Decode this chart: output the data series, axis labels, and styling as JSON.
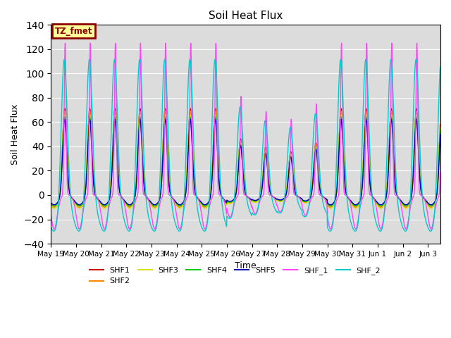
{
  "title": "Soil Heat Flux",
  "xlabel": "Time",
  "ylabel": "Soil Heat Flux",
  "ylim": [
    -40,
    140
  ],
  "yticks": [
    -40,
    -20,
    0,
    20,
    40,
    60,
    80,
    100,
    120,
    140
  ],
  "background_color": "#dcdcdc",
  "legend_box_label": "TZ_fmet",
  "legend_box_facecolor": "#ffff99",
  "legend_box_edgecolor": "#8b0000",
  "series": [
    {
      "label": "SHF1",
      "color": "#cc0000"
    },
    {
      "label": "SHF2",
      "color": "#ff8800"
    },
    {
      "label": "SHF3",
      "color": "#dddd00"
    },
    {
      "label": "SHF4",
      "color": "#00cc00"
    },
    {
      "label": "SHF5",
      "color": "#0000bb"
    },
    {
      "label": "SHF_1",
      "color": "#ff44ff"
    },
    {
      "label": "SHF_2",
      "color": "#00cccc"
    }
  ],
  "tick_labels": [
    "May 19",
    "May 20",
    "May 21",
    "May 22",
    "May 23",
    "May 24",
    "May 25",
    "May 26",
    "May 27",
    "May 28",
    "May 29",
    "May 30",
    "May 31",
    "Jun 1",
    "Jun 2",
    "Jun 3"
  ],
  "grid_color": "#ffffff",
  "line_width": 1.0,
  "num_days": 15.5,
  "day_modifiers": [
    1.0,
    1.0,
    1.0,
    1.0,
    1.0,
    1.0,
    1.0,
    0.65,
    0.55,
    0.5,
    0.6,
    1.0,
    1.0,
    1.0,
    1.0,
    1.0
  ],
  "series_params": [
    {
      "amp": 72,
      "night": 9,
      "smooth": 1.0,
      "peak_hour": 13.0,
      "night_spread": 4.5,
      "peak_spread": 2.0
    },
    {
      "amp": 70,
      "night": 10,
      "smooth": 1.0,
      "peak_hour": 13.0,
      "night_spread": 4.5,
      "peak_spread": 2.1
    },
    {
      "amp": 67,
      "night": 11,
      "smooth": 1.0,
      "peak_hour": 13.0,
      "night_spread": 4.5,
      "peak_spread": 2.2
    },
    {
      "amp": 65,
      "night": 9,
      "smooth": 1.0,
      "peak_hour": 13.0,
      "night_spread": 4.5,
      "peak_spread": 2.0
    },
    {
      "amp": 63,
      "night": 8,
      "smooth": 1.0,
      "peak_hour": 13.0,
      "night_spread": 4.5,
      "peak_spread": 1.9
    },
    {
      "amp": 125,
      "night": 28,
      "smooth": 0.3,
      "peak_hour": 13.5,
      "night_spread": 3.0,
      "peak_spread": 0.9
    },
    {
      "amp": 120,
      "night": 30,
      "smooth": 0.7,
      "peak_hour": 12.5,
      "night_spread": 6.0,
      "peak_spread": 2.8
    }
  ]
}
